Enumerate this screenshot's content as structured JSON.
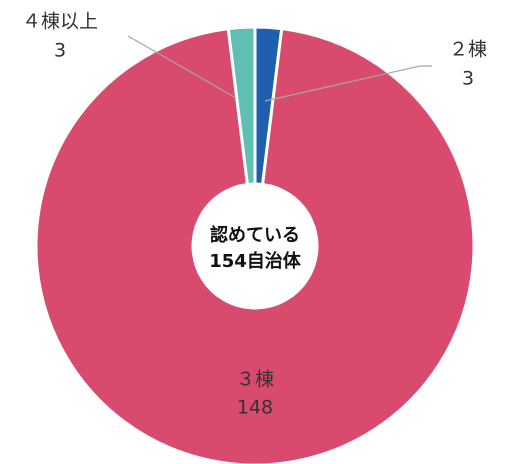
{
  "chart_data": {
    "type": "donut",
    "categories": [
      "２棟",
      "３棟",
      "４棟以上"
    ],
    "values": [
      3,
      148,
      3
    ],
    "colors": [
      "#1f5fad",
      "#d94b6e",
      "#5fbfb3"
    ],
    "center_label": [
      "認めている",
      "154自治体"
    ]
  }
}
